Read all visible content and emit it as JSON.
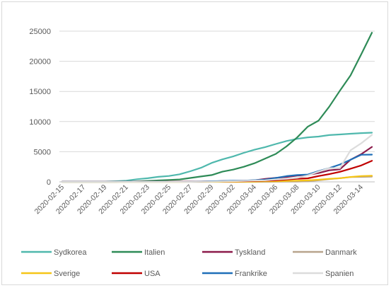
{
  "chart_data": {
    "type": "line",
    "title": "",
    "xlabel": "",
    "ylabel": "",
    "ylim": [
      0,
      25000
    ],
    "yticks": [
      0,
      5000,
      10000,
      15000,
      20000,
      25000
    ],
    "ytick_labels": [
      "0",
      "5000",
      "10000",
      "15000",
      "20000",
      "25000"
    ],
    "grid": true,
    "legend_position": "bottom",
    "x": [
      "2020-02-15",
      "2020-02-16",
      "2020-02-17",
      "2020-02-18",
      "2020-02-19",
      "2020-02-20",
      "2020-02-21",
      "2020-02-22",
      "2020-02-23",
      "2020-02-24",
      "2020-02-25",
      "2020-02-26",
      "2020-02-27",
      "2020-02-28",
      "2020-02-29",
      "2020-03-01",
      "2020-03-02",
      "2020-03-03",
      "2020-03-04",
      "2020-03-05",
      "2020-03-06",
      "2020-03-07",
      "2020-03-08",
      "2020-03-09",
      "2020-03-10",
      "2020-03-11",
      "2020-03-12",
      "2020-03-13",
      "2020-03-14",
      "2020-03-15"
    ],
    "xtick_labels": [
      "2020-02-15",
      "2020-02-17",
      "2020-02-19",
      "2020-02-21",
      "2020-02-23",
      "2020-02-25",
      "2020-02-27",
      "2020-02-29",
      "2020-03-02",
      "2020-03-04",
      "2020-03-06",
      "2020-03-08",
      "2020-03-10",
      "2020-03-12",
      "2020-03-14"
    ],
    "series": [
      {
        "name": "Sydkorea",
        "color": "#4fb8ad",
        "values": [
          28,
          29,
          30,
          31,
          51,
          104,
          204,
          433,
          602,
          833,
          977,
          1261,
          1766,
          2337,
          3150,
          3736,
          4212,
          4812,
          5328,
          5766,
          6284,
          6767,
          7134,
          7382,
          7513,
          7755,
          7869,
          7979,
          8086,
          8162
        ]
      },
      {
        "name": "Italien",
        "color": "#2e8b57",
        "values": [
          3,
          3,
          3,
          3,
          3,
          3,
          20,
          79,
          150,
          229,
          322,
          400,
          650,
          888,
          1128,
          1694,
          2036,
          2502,
          3089,
          3858,
          4636,
          5883,
          7375,
          9172,
          10149,
          12462,
          15113,
          17660,
          21157,
          24747
        ]
      },
      {
        "name": "Tyskland",
        "color": "#8b1a4a",
        "values": [
          16,
          16,
          16,
          16,
          16,
          16,
          16,
          16,
          16,
          16,
          17,
          27,
          46,
          48,
          79,
          130,
          159,
          196,
          262,
          482,
          670,
          799,
          1040,
          1176,
          1457,
          1908,
          2078,
          3675,
          4585,
          5795
        ]
      },
      {
        "name": "Danmark",
        "color": "#b8a48c",
        "values": [
          0,
          0,
          0,
          0,
          0,
          0,
          0,
          0,
          0,
          0,
          0,
          0,
          1,
          1,
          1,
          1,
          2,
          2,
          4,
          10,
          23,
          31,
          36,
          90,
          262,
          442,
          615,
          801,
          827,
          864
        ]
      },
      {
        "name": "Sverige",
        "color": "#f5c518",
        "values": [
          1,
          1,
          1,
          1,
          1,
          1,
          1,
          1,
          1,
          1,
          1,
          1,
          7,
          7,
          12,
          14,
          15,
          21,
          35,
          94,
          101,
          161,
          203,
          248,
          355,
          500,
          599,
          814,
          961,
          1022
        ]
      },
      {
        "name": "USA",
        "color": "#c00000",
        "values": [
          15,
          15,
          15,
          15,
          15,
          15,
          15,
          35,
          35,
          35,
          53,
          57,
          60,
          60,
          68,
          74,
          98,
          118,
          149,
          217,
          262,
          402,
          518,
          583,
          959,
          1281,
          1663,
          2179,
          2727,
          3499
        ]
      },
      {
        "name": "Frankrike",
        "color": "#1f6fb8",
        "values": [
          12,
          12,
          12,
          12,
          12,
          12,
          12,
          12,
          12,
          12,
          14,
          18,
          38,
          57,
          100,
          130,
          191,
          204,
          285,
          377,
          653,
          949,
          1126,
          1209,
          1784,
          2281,
          2876,
          3661,
          4499,
          4513
        ]
      },
      {
        "name": "Spanien",
        "color": "#dcdcdc",
        "values": [
          2,
          2,
          2,
          2,
          2,
          2,
          2,
          2,
          2,
          2,
          6,
          13,
          15,
          32,
          45,
          84,
          120,
          165,
          222,
          259,
          400,
          500,
          673,
          1073,
          1695,
          2277,
          2277,
          5232,
          6391,
          7798
        ]
      }
    ]
  }
}
